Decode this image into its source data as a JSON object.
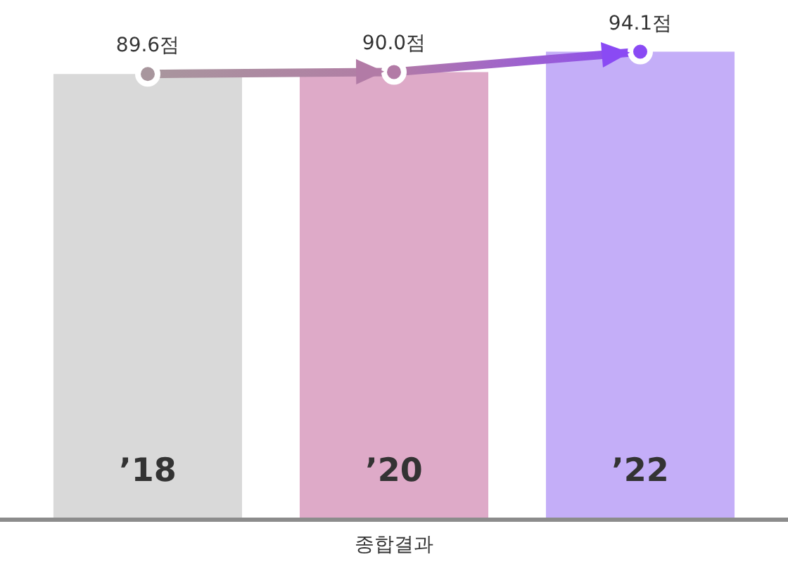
{
  "chart_data": {
    "type": "bar",
    "xlabel": "종합결과",
    "categories": [
      "’18",
      "’20",
      "’22"
    ],
    "series": [
      {
        "values": [
          89.6,
          90.0,
          94.1
        ],
        "colors": [
          "#d9d9d9",
          "#deaac8",
          "#c4aef8"
        ],
        "value_labels": [
          "89.6점",
          "90.0점",
          "94.1점"
        ]
      },
      {
        "type": "line",
        "values": [
          89.6,
          90.0,
          94.1
        ],
        "colors": [
          "#a8969d",
          "#b27ba6",
          "#8a4af4"
        ]
      }
    ],
    "tick_labels": "x",
    "marker": "circle",
    "legend": false
  }
}
